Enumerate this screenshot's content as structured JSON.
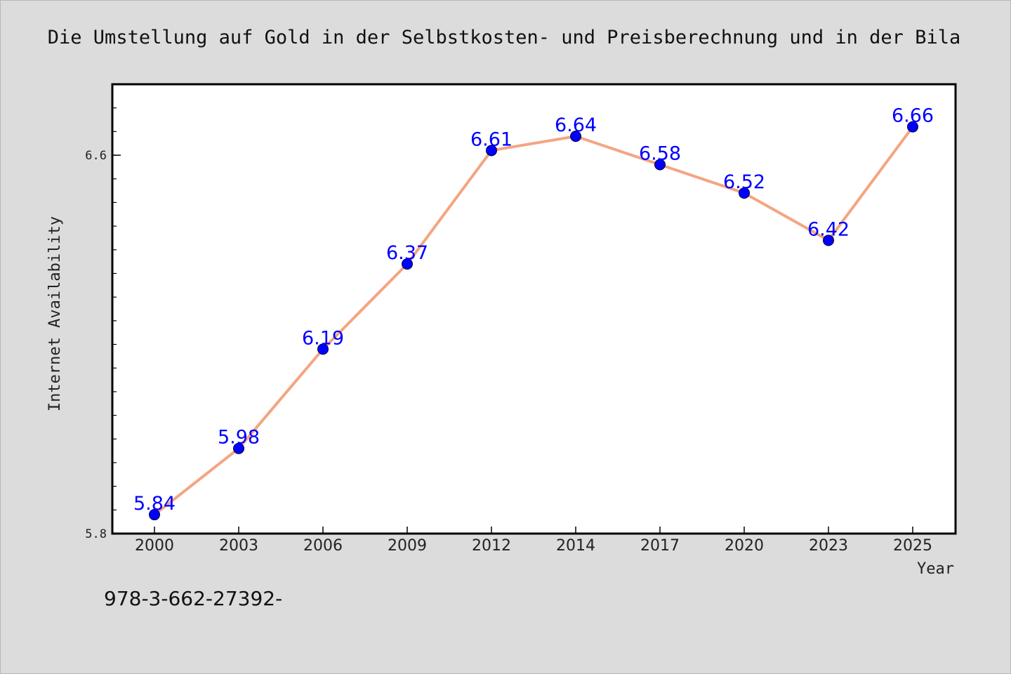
{
  "chart_data": {
    "type": "line",
    "title": "Die Umstellung auf Gold in der Selbstkosten- und Preisberechnung und in der Bila",
    "xlabel": "Year",
    "ylabel": "Internet Availability",
    "categories": [
      "2000",
      "2003",
      "2006",
      "2009",
      "2012",
      "2014",
      "2017",
      "2020",
      "2023",
      "2025"
    ],
    "series": [
      {
        "values": [
          5.84,
          5.98,
          6.19,
          6.37,
          6.61,
          6.64,
          6.58,
          6.52,
          6.42,
          6.66
        ],
        "labels": [
          "5.84",
          "5.98",
          "6.19",
          "6.37",
          "6.61",
          "6.64",
          "6.58",
          "6.52",
          "6.42",
          "6.66"
        ],
        "line_color": "#f4a582",
        "marker_color": "#0000ff",
        "label_color": "#0000ff"
      }
    ],
    "ylim": [
      5.8,
      6.75
    ],
    "yticks": [
      {
        "value": 5.8,
        "label": "5.8"
      },
      {
        "value": 6.6,
        "label": "6.6"
      }
    ],
    "y_minor_step": 0.05,
    "grid": false,
    "legend": "none"
  },
  "footnote": "978-3-662-27392-"
}
